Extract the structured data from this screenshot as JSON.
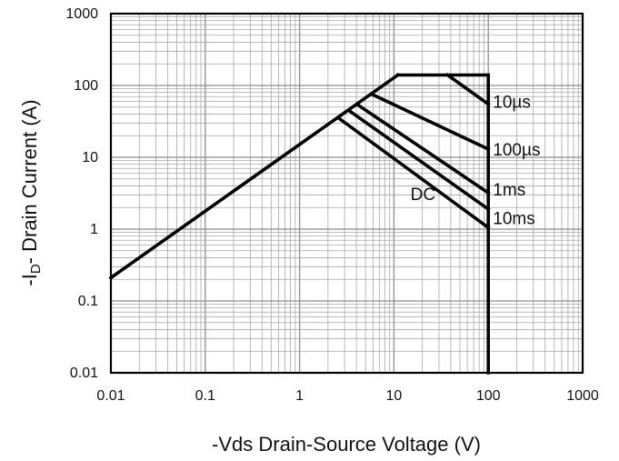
{
  "chart_data": {
    "type": "line",
    "title": "",
    "xlabel": "-Vds Drain-Source Voltage (V)",
    "ylabel_prefix": "-I",
    "ylabel_subscript": "D",
    "ylabel_suffix": "- Drain Current (A)",
    "xscale": "log",
    "yscale": "log",
    "xlim": [
      0.01,
      1000
    ],
    "ylim": [
      0.01,
      1000
    ],
    "grid": true,
    "x_ticks": [
      {
        "value": 0.01,
        "label": "0.01"
      },
      {
        "value": 0.1,
        "label": "0.1"
      },
      {
        "value": 1,
        "label": "1"
      },
      {
        "value": 10,
        "label": "10"
      },
      {
        "value": 100,
        "label": "100"
      },
      {
        "value": 1000,
        "label": "1000"
      }
    ],
    "y_ticks": [
      {
        "value": 0.01,
        "label": "0.01"
      },
      {
        "value": 0.1,
        "label": "0.1"
      },
      {
        "value": 1,
        "label": "1"
      },
      {
        "value": 10,
        "label": "10"
      },
      {
        "value": 100,
        "label": "100"
      },
      {
        "value": 1000,
        "label": "1000"
      }
    ],
    "boundary": {
      "rdson_limit": {
        "x": [
          0.01,
          11
        ],
        "y": [
          0.21,
          140
        ]
      },
      "current_limit": {
        "x": [
          11,
          100
        ],
        "y": [
          140,
          140
        ]
      },
      "voltage_limit": {
        "x": [
          100,
          100
        ],
        "y": [
          140,
          0.01
        ]
      }
    },
    "series": [
      {
        "name": "10µs",
        "x": [
          37,
          100
        ],
        "y": [
          140,
          55
        ]
      },
      {
        "name": "100µs",
        "x": [
          5.9,
          100
        ],
        "y": [
          75,
          13
        ]
      },
      {
        "name": "1ms",
        "x": [
          4.2,
          100
        ],
        "y": [
          53,
          3.2
        ]
      },
      {
        "name": "10ms",
        "x": [
          3.4,
          100
        ],
        "y": [
          44,
          1.9
        ]
      },
      {
        "name": "DC",
        "x": [
          2.6,
          100
        ],
        "y": [
          35,
          1.05
        ]
      }
    ],
    "annotations": [
      {
        "text": "10µs",
        "x": 112,
        "y": 60
      },
      {
        "text": "100µs",
        "x": 112,
        "y": 13
      },
      {
        "text": "1ms",
        "x": 112,
        "y": 3.6
      },
      {
        "text": "10ms",
        "x": 112,
        "y": 1.45
      },
      {
        "text": "DC",
        "x": 15,
        "y": 3.1
      }
    ]
  }
}
